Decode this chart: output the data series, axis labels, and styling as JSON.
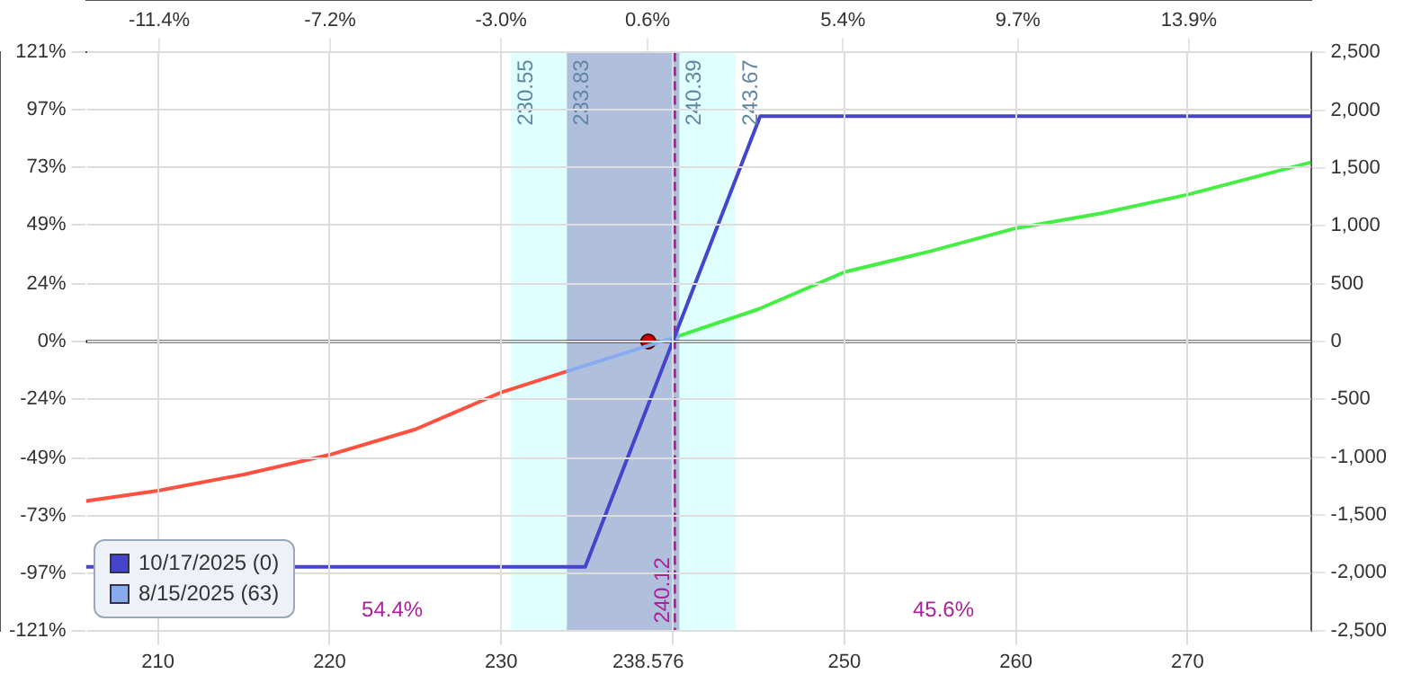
{
  "chart_data": {
    "type": "line",
    "xlim": [
      205.8,
      277.2
    ],
    "xticks": [
      210,
      220,
      230,
      {
        "value": 238.576,
        "label": "238.576"
      },
      {
        "value": 240,
        "label": null
      },
      250,
      260,
      270
    ],
    "x2lim": [
      -13.2,
      16.9
    ],
    "x2ticks": [
      {
        "value": -11.4,
        "label": "-11.4%"
      },
      {
        "value": -7.2,
        "label": "-7.2%"
      },
      {
        "value": -3.0,
        "label": "-3.0%"
      },
      {
        "value": 0.6,
        "label": "0.6%"
      },
      {
        "value": 5.4,
        "label": "5.4%"
      },
      {
        "value": 9.7,
        "label": "9.7%"
      },
      {
        "value": 13.9,
        "label": "13.9%"
      }
    ],
    "ylim": [
      -121,
      121
    ],
    "yticks": [
      {
        "value": 121,
        "label": "121%"
      },
      {
        "value": 97,
        "label": "97%"
      },
      {
        "value": 73,
        "label": "73%"
      },
      {
        "value": 49,
        "label": "49%"
      },
      {
        "value": 24,
        "label": "24%"
      },
      {
        "value": 0,
        "label": "0%"
      },
      {
        "value": -24,
        "label": "-24%"
      },
      {
        "value": -49,
        "label": "-49%"
      },
      {
        "value": -73,
        "label": "-73%"
      },
      {
        "value": -97,
        "label": "-97%"
      },
      {
        "value": -121,
        "label": "-121%"
      }
    ],
    "y2lim": [
      -2500,
      2500
    ],
    "y2ticks": [
      {
        "value": 2500,
        "label": "2,500"
      },
      {
        "value": 2000,
        "label": "2,000"
      },
      {
        "value": 1500,
        "label": "1,500"
      },
      {
        "value": 1000,
        "label": "1,000"
      },
      {
        "value": 500,
        "label": "500"
      },
      {
        "value": 0,
        "label": "0"
      },
      {
        "value": -500,
        "label": "-500"
      },
      {
        "value": -1000,
        "label": "-1,000"
      },
      {
        "value": -1500,
        "label": "-1,500"
      },
      {
        "value": -2000,
        "label": "-2,000"
      },
      {
        "value": -2500,
        "label": "-2,500"
      }
    ],
    "grid": true,
    "legend": "bottom left",
    "marker": "none",
    "series": [
      {
        "name": "10/17/2025 (0)",
        "color": "#4444cc",
        "axis": "y2",
        "x": [
          205.8,
          234.9,
          245.1,
          277.2
        ],
        "values": [
          -1950,
          -1950,
          1950,
          1950
        ]
      },
      {
        "color": "#ff5040",
        "axis": "y2",
        "x": [
          205.8,
          210,
          215,
          220,
          225,
          230,
          233.8
        ],
        "values": [
          -1380,
          -1290,
          -1150,
          -980,
          -760,
          -440,
          -260
        ]
      },
      {
        "name": "8/15/2025 (63)",
        "color": "#88aaee",
        "axis": "y2",
        "x": [
          233.8,
          237,
          240.4
        ],
        "values": [
          -260,
          -110,
          50
        ]
      },
      {
        "color": "#44ee44",
        "axis": "y2",
        "x": [
          240.4,
          245,
          250,
          255,
          260,
          265,
          270,
          277.2
        ],
        "values": [
          50,
          280,
          600,
          780,
          980,
          1110,
          1270,
          1550
        ]
      },
      {
        "type": "scatter",
        "color": "#cc0000",
        "axis": "y2",
        "marker": "circle",
        "x": [
          238.576
        ],
        "values": [
          0
        ]
      }
    ],
    "bands": [
      {
        "axis": "x",
        "from": 230.55,
        "to": 243.67,
        "color": "#e0ffff"
      },
      {
        "axis": "x",
        "from": 233.83,
        "to": 240.39,
        "color": "#b0c0dc"
      }
    ],
    "ref_lines": [
      {
        "axis": "x",
        "value": 240.12,
        "label": "240.12",
        "color": "#aa2299",
        "line_style": "dashed"
      },
      {
        "axis": "y2",
        "value": 0,
        "color": "#000000",
        "line_style": "solid"
      }
    ],
    "annotations": [
      "230.55",
      "233.83",
      "240.39",
      "243.67",
      "54.4%",
      "45.6%"
    ]
  }
}
